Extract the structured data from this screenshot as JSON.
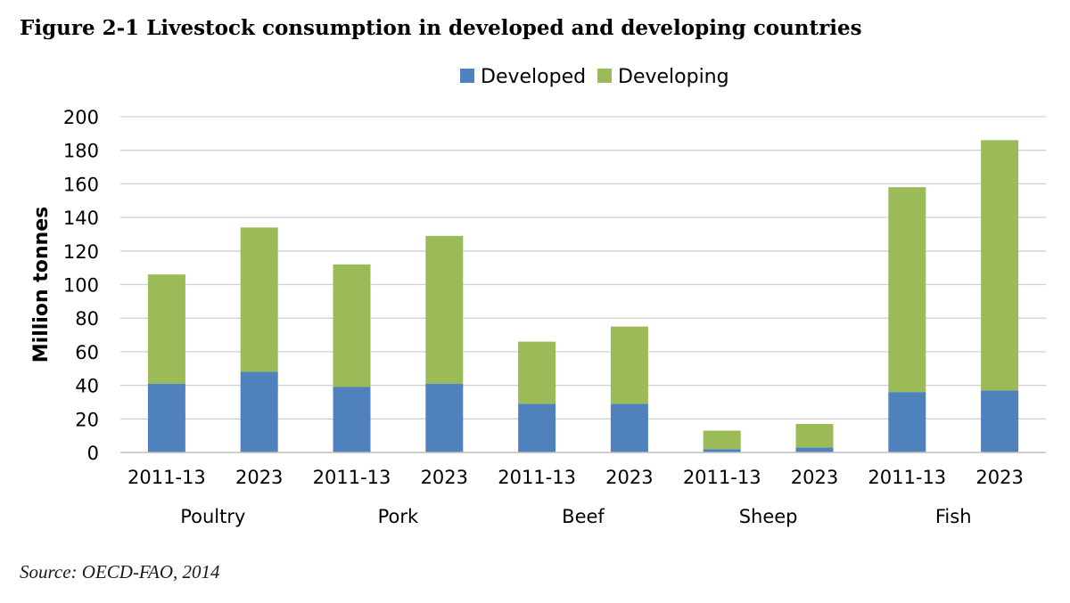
{
  "figure_title": "Figure 2-1 Livestock consumption in developed and developing countries",
  "source": "Source: OECD-FAO, 2014",
  "chart_data": {
    "type": "bar",
    "stacked": true,
    "title": "Figure 2-1 Livestock consumption in developed and developing countries",
    "xlabel": "",
    "ylabel": "Million tonnes",
    "ylim": [
      0,
      200
    ],
    "yticks": [
      0,
      20,
      40,
      60,
      80,
      100,
      120,
      140,
      160,
      180,
      200
    ],
    "grid": true,
    "legend_position": "top-center",
    "groups": [
      "Poultry",
      "Pork",
      "Beef",
      "Sheep",
      "Fish"
    ],
    "categories": [
      "2011-13",
      "2023",
      "2011-13",
      "2023",
      "2011-13",
      "2023",
      "2011-13",
      "2023",
      "2011-13",
      "2023"
    ],
    "series": [
      {
        "name": "Developed",
        "color": "#4f81bd",
        "values": [
          41,
          48,
          39,
          41,
          29,
          29,
          2,
          3,
          36,
          37
        ]
      },
      {
        "name": "Developing",
        "color": "#9bbb59",
        "values": [
          65,
          86,
          73,
          88,
          37,
          46,
          11,
          14,
          122,
          149
        ]
      }
    ]
  }
}
